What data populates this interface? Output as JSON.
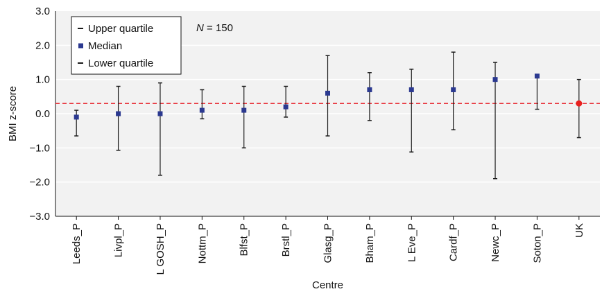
{
  "chart_data": {
    "type": "scatter",
    "title": "",
    "xlabel": "Centre",
    "ylabel": "BMI z-score",
    "ylim": [
      -3.0,
      3.0
    ],
    "yticks": [
      "−3.0",
      "−2.0",
      "−1.0",
      "0.0",
      "1.0",
      "2.0",
      "3.0"
    ],
    "categories": [
      "Leeds_P",
      "Livpl_P",
      "L GOSH_P",
      "Nottm_P",
      "Blfst_P",
      "Brstl_P",
      "Glasg_P",
      "Bham_P",
      "L Eve_P",
      "Cardf_P",
      "Newc_P",
      "Soton_P",
      "UK"
    ],
    "series": [
      {
        "name": "Upper quartile",
        "values": [
          0.1,
          0.8,
          0.9,
          0.7,
          0.8,
          0.8,
          1.7,
          1.2,
          1.3,
          1.8,
          1.5,
          1.1,
          1.0
        ]
      },
      {
        "name": "Median",
        "values": [
          -0.1,
          0.0,
          0.0,
          0.1,
          0.1,
          0.2,
          0.6,
          0.7,
          0.7,
          0.7,
          1.0,
          1.1,
          0.3
        ]
      },
      {
        "name": "Lower quartile",
        "values": [
          -0.65,
          -1.07,
          -1.8,
          -0.15,
          -1.0,
          -0.1,
          -0.65,
          -0.2,
          -1.12,
          -0.47,
          -1.9,
          0.13,
          -0.7
        ]
      }
    ],
    "reference_line": {
      "value": 0.3,
      "style": "dashed",
      "color": "#e8333a"
    },
    "annotation": {
      "N_label": "N",
      "N_value": "= 150"
    },
    "legend": {
      "position": "top-left",
      "entries": [
        "Upper quartile",
        "Median",
        "Lower quartile"
      ]
    },
    "colors": {
      "median_marker": "#2b3990",
      "uk_marker": "#e8201e",
      "whisker": "#1a1a1a",
      "plot_background": "#f2f2f2",
      "gridline": "#ffffff"
    },
    "grid": true
  }
}
